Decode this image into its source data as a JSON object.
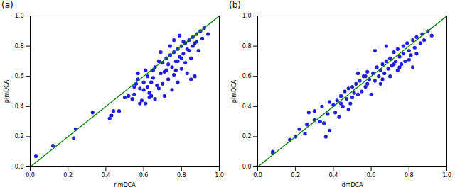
{
  "chart_data": [
    {
      "type": "scatter",
      "title": "(a)",
      "x_label": "rlmDCA",
      "y_label": "plmDCA",
      "xlim": [
        0,
        1
      ],
      "ylim": [
        0,
        1
      ],
      "xticks": [
        {
          "value": 0,
          "label": "0.0"
        },
        {
          "value": 0.2,
          "label": "0.2"
        },
        {
          "value": 0.4,
          "label": "0.4"
        },
        {
          "value": 0.6,
          "label": "0.6"
        },
        {
          "value": 0.8,
          "label": "0.8"
        },
        {
          "value": 1,
          "label": "1.0"
        }
      ],
      "yticks": [
        {
          "value": 0,
          "label": "0.0"
        },
        {
          "value": 0.2,
          "label": "0.2"
        },
        {
          "value": 0.4,
          "label": "0.4"
        },
        {
          "value": 0.6,
          "label": "0.6"
        },
        {
          "value": 0.8,
          "label": "0.8"
        },
        {
          "value": 1,
          "label": "1.0"
        }
      ],
      "series": [
        {
          "type": "scatter",
          "color": "#1f1fdd",
          "marker": "circle",
          "x": [
            0.03,
            0.12,
            0.23,
            0.24,
            0.33,
            0.42,
            0.43,
            0.44,
            0.47,
            0.5,
            0.52,
            0.54,
            0.55,
            0.56,
            0.57,
            0.58,
            0.58,
            0.59,
            0.6,
            0.6,
            0.61,
            0.62,
            0.63,
            0.64,
            0.65,
            0.66,
            0.67,
            0.68,
            0.69,
            0.7,
            0.7,
            0.71,
            0.72,
            0.72,
            0.73,
            0.74,
            0.75,
            0.75,
            0.76,
            0.76,
            0.77,
            0.78,
            0.78,
            0.79,
            0.8,
            0.8,
            0.81,
            0.82,
            0.82,
            0.83,
            0.84,
            0.84,
            0.85,
            0.86,
            0.86,
            0.87,
            0.88,
            0.88,
            0.89,
            0.9,
            0.91,
            0.92,
            0.94,
            0.57,
            0.65,
            0.68,
            0.74,
            0.76,
            0.79,
            0.73,
            0.71,
            0.62,
            0.66,
            0.64,
            0.69,
            0.77,
            0.8,
            0.83,
            0.85,
            0.87,
            0.55,
            0.61,
            0.78,
            0.81,
            0.63
          ],
          "values": [
            0.07,
            0.14,
            0.19,
            0.25,
            0.36,
            0.32,
            0.34,
            0.37,
            0.37,
            0.46,
            0.47,
            0.45,
            0.48,
            0.55,
            0.58,
            0.52,
            0.42,
            0.44,
            0.51,
            0.56,
            0.42,
            0.6,
            0.46,
            0.47,
            0.64,
            0.66,
            0.54,
            0.52,
            0.62,
            0.55,
            0.69,
            0.47,
            0.72,
            0.64,
            0.58,
            0.74,
            0.51,
            0.66,
            0.76,
            0.61,
            0.7,
            0.78,
            0.56,
            0.73,
            0.8,
            0.65,
            0.75,
            0.82,
            0.69,
            0.62,
            0.84,
            0.77,
            0.72,
            0.86,
            0.8,
            0.6,
            0.88,
            0.83,
            0.77,
            0.9,
            0.85,
            0.92,
            0.88,
            0.62,
            0.59,
            0.7,
            0.8,
            0.84,
            0.87,
            0.68,
            0.63,
            0.53,
            0.45,
            0.56,
            0.76,
            0.64,
            0.72,
            0.78,
            0.58,
            0.82,
            0.53,
            0.64,
            0.7,
            0.83,
            0.49
          ]
        },
        {
          "type": "line",
          "color": "#008000",
          "x": [
            0,
            1
          ],
          "values": [
            0,
            1
          ]
        }
      ]
    },
    {
      "type": "scatter",
      "title": "(b)",
      "x_label": "dmDCA",
      "y_label": "plmDCA",
      "xlim": [
        0,
        1
      ],
      "ylim": [
        0,
        1
      ],
      "xticks": [
        {
          "value": 0,
          "label": "0.0"
        },
        {
          "value": 0.2,
          "label": "0.2"
        },
        {
          "value": 0.4,
          "label": "0.4"
        },
        {
          "value": 0.6,
          "label": "0.6"
        },
        {
          "value": 0.8,
          "label": "0.8"
        },
        {
          "value": 1,
          "label": "1.0"
        }
      ],
      "yticks": [
        {
          "value": 0,
          "label": "0.0"
        },
        {
          "value": 0.2,
          "label": "0.2"
        },
        {
          "value": 0.4,
          "label": "0.4"
        },
        {
          "value": 0.6,
          "label": "0.6"
        },
        {
          "value": 0.8,
          "label": "0.8"
        },
        {
          "value": 1,
          "label": "1.0"
        }
      ],
      "series": [
        {
          "type": "scatter",
          "color": "#1f1fdd",
          "marker": "circle",
          "x": [
            0.08,
            0.08,
            0.17,
            0.2,
            0.22,
            0.25,
            0.26,
            0.27,
            0.3,
            0.3,
            0.33,
            0.34,
            0.35,
            0.36,
            0.37,
            0.38,
            0.38,
            0.4,
            0.41,
            0.42,
            0.43,
            0.44,
            0.45,
            0.46,
            0.47,
            0.48,
            0.49,
            0.5,
            0.5,
            0.51,
            0.52,
            0.53,
            0.54,
            0.55,
            0.56,
            0.57,
            0.58,
            0.58,
            0.59,
            0.6,
            0.61,
            0.62,
            0.63,
            0.64,
            0.65,
            0.65,
            0.66,
            0.67,
            0.68,
            0.69,
            0.7,
            0.7,
            0.71,
            0.72,
            0.73,
            0.74,
            0.74,
            0.75,
            0.76,
            0.77,
            0.77,
            0.78,
            0.79,
            0.8,
            0.81,
            0.82,
            0.82,
            0.83,
            0.84,
            0.84,
            0.86,
            0.87,
            0.88,
            0.9,
            0.92,
            0.62,
            0.68,
            0.75,
            0.53,
            0.44,
            0.48,
            0.57,
            0.66,
            0.72,
            0.8
          ],
          "values": [
            0.09,
            0.1,
            0.18,
            0.2,
            0.25,
            0.22,
            0.28,
            0.36,
            0.37,
            0.31,
            0.3,
            0.4,
            0.29,
            0.2,
            0.35,
            0.24,
            0.43,
            0.41,
            0.36,
            0.44,
            0.33,
            0.47,
            0.4,
            0.5,
            0.45,
            0.52,
            0.42,
            0.53,
            0.46,
            0.49,
            0.55,
            0.48,
            0.57,
            0.5,
            0.6,
            0.53,
            0.63,
            0.55,
            0.58,
            0.48,
            0.62,
            0.57,
            0.66,
            0.6,
            0.64,
            0.55,
            0.68,
            0.62,
            0.7,
            0.65,
            0.72,
            0.6,
            0.67,
            0.76,
            0.7,
            0.78,
            0.64,
            0.73,
            0.68,
            0.8,
            0.75,
            0.7,
            0.82,
            0.77,
            0.74,
            0.84,
            0.66,
            0.79,
            0.86,
            0.75,
            0.82,
            0.88,
            0.84,
            0.9,
            0.87,
            0.77,
            0.8,
            0.66,
            0.62,
            0.42,
            0.38,
            0.6,
            0.58,
            0.68,
            0.71
          ]
        },
        {
          "type": "line",
          "color": "#008000",
          "x": [
            0,
            1
          ],
          "values": [
            0,
            1
          ]
        }
      ]
    }
  ]
}
